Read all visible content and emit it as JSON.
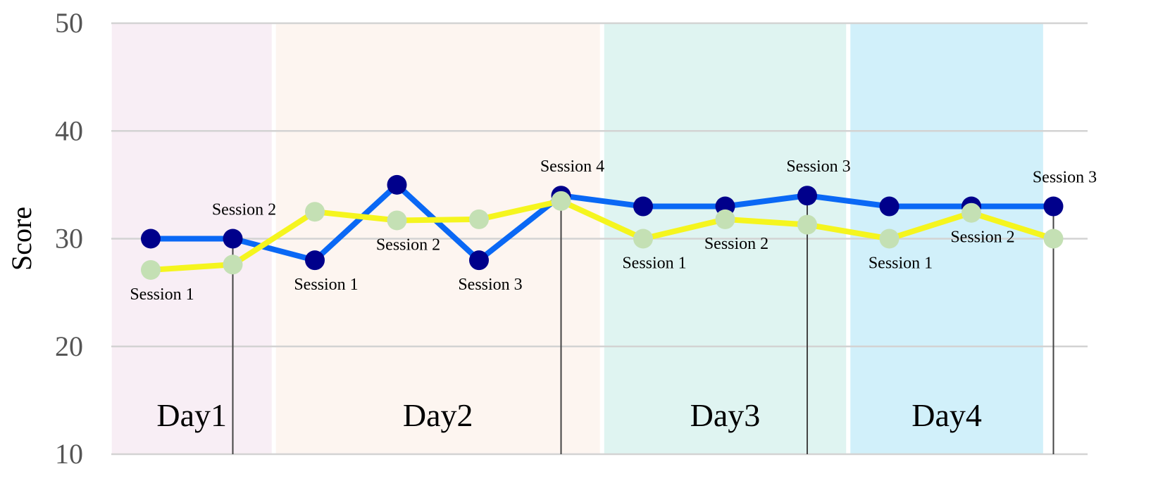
{
  "chart_data": {
    "type": "line",
    "ylabel": "Score",
    "ylim": [
      10,
      50
    ],
    "yticks": [
      "10",
      "20",
      "30",
      "40",
      "50"
    ],
    "grid": true,
    "days": [
      {
        "label": "Day1",
        "start": 0.5,
        "end": 2.5,
        "color": "#f8eef5"
      },
      {
        "label": "Day2",
        "start": 2.5,
        "end": 6.5,
        "color": "#fdf5f0"
      },
      {
        "label": "Day3",
        "start": 6.5,
        "end": 9.5,
        "color": "#dff4f1"
      },
      {
        "label": "Day4",
        "start": 9.5,
        "end": 11.9,
        "color": "#d1f0fa"
      }
    ],
    "x": [
      1,
      2,
      3,
      4,
      5,
      6,
      7,
      8,
      9,
      10,
      11,
      12
    ],
    "session_labels": [
      {
        "x": 1,
        "text": "Session 1",
        "pos": "below"
      },
      {
        "x": 2,
        "text": "Session 2",
        "pos": "above"
      },
      {
        "x": 3,
        "text": "Session 1",
        "pos": "below"
      },
      {
        "x": 4,
        "text": "Session 2",
        "pos": "below"
      },
      {
        "x": 5,
        "text": "Session 3",
        "pos": "below"
      },
      {
        "x": 6,
        "text": "Session 4",
        "pos": "above"
      },
      {
        "x": 7,
        "text": "Session 1",
        "pos": "below"
      },
      {
        "x": 8,
        "text": "Session 2",
        "pos": "below"
      },
      {
        "x": 9,
        "text": "Session 3",
        "pos": "above"
      },
      {
        "x": 10,
        "text": "Session 1",
        "pos": "below"
      },
      {
        "x": 11,
        "text": "Session 2",
        "pos": "below"
      },
      {
        "x": 12,
        "text": "Session 3",
        "pos": "above"
      }
    ],
    "day_end_markers": [
      2,
      6,
      9,
      12
    ],
    "series": [
      {
        "line_color": "#0a68f5",
        "marker_color": "#00008b",
        "values": [
          30,
          30,
          28,
          35,
          28,
          34,
          33,
          33,
          34,
          33,
          33,
          33
        ]
      },
      {
        "line_color": "#f5f51e",
        "marker_color": "#c4e0b4",
        "values": [
          27.1,
          27.6,
          32.5,
          31.7,
          31.8,
          33.5,
          30,
          31.8,
          31.3,
          30,
          32.4,
          30
        ]
      }
    ]
  }
}
